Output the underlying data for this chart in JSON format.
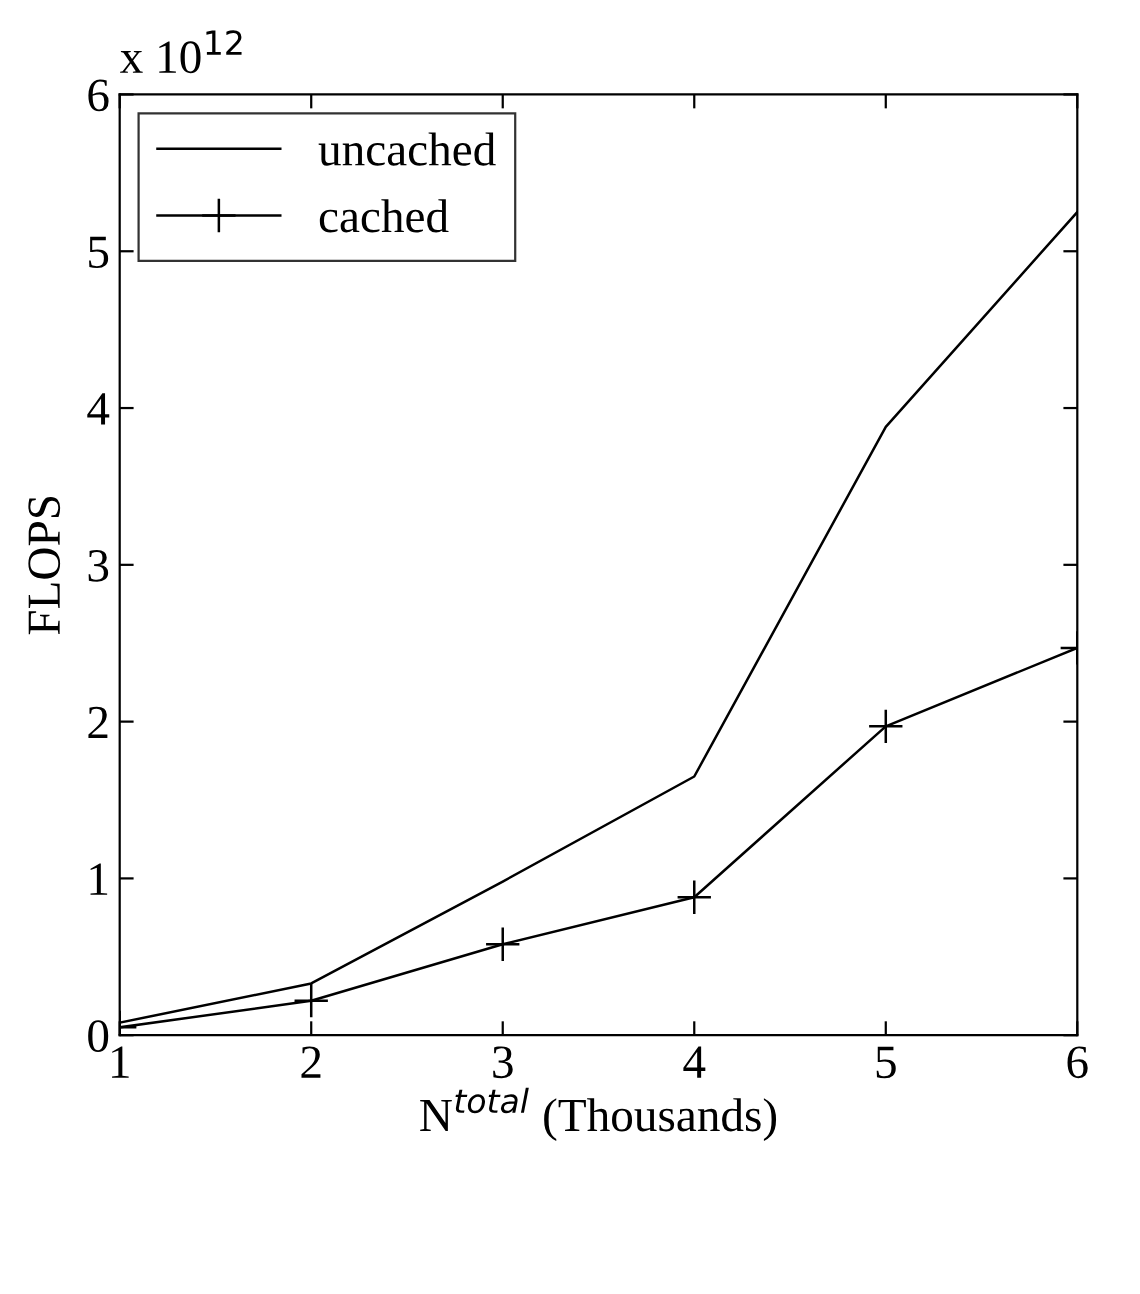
{
  "chart_data": {
    "type": "line",
    "x": [
      1,
      2,
      3,
      4,
      5,
      6
    ],
    "series": [
      {
        "name": "uncached",
        "color": "#000000",
        "marker": "none",
        "values": [
          0.08,
          0.33,
          0.98,
          1.65,
          3.88,
          5.25
        ]
      },
      {
        "name": "cached",
        "color": "#000000",
        "marker": "cross",
        "values": [
          0.05,
          0.22,
          0.58,
          0.88,
          1.97,
          2.47
        ]
      }
    ],
    "xlabel": "N$^{total}$ (Thousands)",
    "ylabel": "FLOPS",
    "annotations": [
      "x 10$^{12}$"
    ],
    "xlim": [
      1,
      6
    ],
    "xticks": [
      1,
      2,
      3,
      4,
      5,
      6
    ],
    "ylim": [
      0,
      6
    ],
    "yticks": [
      0,
      1,
      2,
      3,
      4,
      5,
      6
    ],
    "grid": false,
    "legend": "top left",
    "line_style": "solid"
  }
}
